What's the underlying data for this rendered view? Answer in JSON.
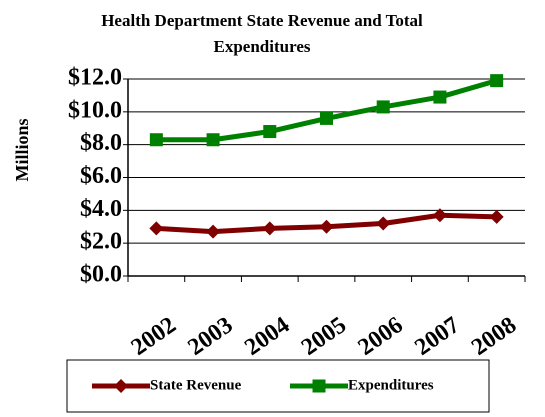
{
  "chart_data": {
    "type": "line",
    "title": "Health Department State Revenue and Total Expenditures",
    "y_label": "Millions",
    "categories": [
      "2002",
      "2003",
      "2004",
      "2005",
      "2006",
      "2007",
      "2008"
    ],
    "series": [
      {
        "name": "State Revenue",
        "color": "#800000",
        "marker": "diamond",
        "values": [
          2.9,
          2.7,
          2.9,
          3.0,
          3.2,
          3.7,
          3.6
        ]
      },
      {
        "name": "Expenditures",
        "color": "#008000",
        "marker": "square",
        "values": [
          8.3,
          8.3,
          8.8,
          9.6,
          10.3,
          10.9,
          11.9
        ]
      }
    ],
    "ylim": [
      0,
      12
    ],
    "yticks": [
      {
        "value": 0,
        "label": "$0.0"
      },
      {
        "value": 2,
        "label": "$2.0"
      },
      {
        "value": 4,
        "label": "$4.0"
      },
      {
        "value": 6,
        "label": "$6.0"
      },
      {
        "value": 8,
        "label": "$8.0"
      },
      {
        "value": 10,
        "label": "$10.0"
      },
      {
        "value": 12,
        "label": "$12.0"
      }
    ],
    "grid": true
  }
}
